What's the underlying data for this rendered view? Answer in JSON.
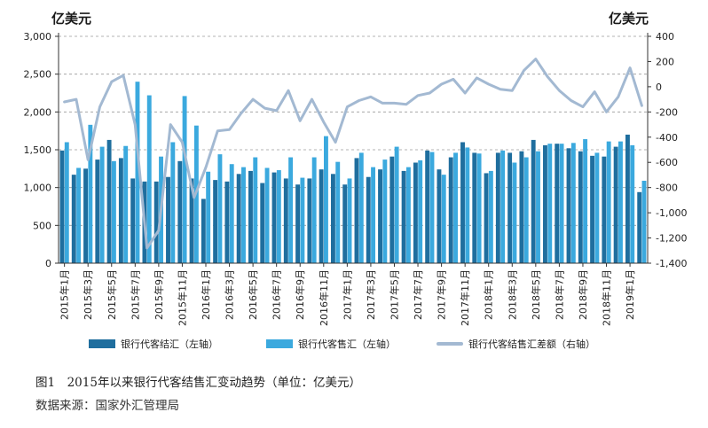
{
  "left_unit": "亿美元",
  "right_unit": "亿美元",
  "caption": "图1　2015年以来银行代客结售汇变动趋势（单位：亿美元）",
  "source": "数据来源：国家外汇管理局",
  "colors": {
    "settlement": "#1f6e9e",
    "sales": "#3ba9de",
    "balance": "#a3b9d2",
    "grid": "#9a9a9a",
    "axis": "#333333"
  },
  "chart_data": {
    "type": "bar+line",
    "categories": [
      "2015年1月",
      "2015年2月",
      "2015年3月",
      "2015年4月",
      "2015年5月",
      "2015年6月",
      "2015年7月",
      "2015年8月",
      "2015年9月",
      "2015年10月",
      "2015年11月",
      "2015年12月",
      "2016年1月",
      "2016年2月",
      "2016年3月",
      "2016年4月",
      "2016年5月",
      "2016年6月",
      "2016年7月",
      "2016年8月",
      "2016年9月",
      "2016年10月",
      "2016年11月",
      "2016年12月",
      "2017年1月",
      "2017年2月",
      "2017年3月",
      "2017年4月",
      "2017年5月",
      "2017年6月",
      "2017年7月",
      "2017年8月",
      "2017年9月",
      "2017年10月",
      "2017年11月",
      "2017年12月",
      "2018年1月",
      "2018年2月",
      "2018年3月",
      "2018年4月",
      "2018年5月",
      "2018年6月",
      "2018年7月",
      "2018年8月",
      "2018年9月",
      "2018年10月",
      "2018年11月",
      "2018年12月",
      "2019年1月",
      "2019年2月"
    ],
    "tick_labels": [
      "2015年1月",
      "2015年3月",
      "2015年5月",
      "2015年7月",
      "2015年9月",
      "2015年11月",
      "2016年1月",
      "2016年3月",
      "2016年5月",
      "2016年7月",
      "2016年9月",
      "2016年11月",
      "2017年1月",
      "2017年3月",
      "2017年5月",
      "2017年7月",
      "2017年9月",
      "2017年11月",
      "2018年1月",
      "2018年3月",
      "2018年5月",
      "2018年7月",
      "2018年9月",
      "2018年11月",
      "2019年1月"
    ],
    "series": [
      {
        "name": "银行代客结汇（左轴）",
        "axis": "left",
        "kind": "bar",
        "values": [
          1490,
          1170,
          1250,
          1370,
          1630,
          1390,
          1120,
          1080,
          1080,
          1140,
          1350,
          1120,
          850,
          1100,
          1080,
          1180,
          1220,
          1060,
          1200,
          1120,
          1040,
          1120,
          1240,
          1180,
          1040,
          1390,
          1140,
          1240,
          1410,
          1220,
          1330,
          1490,
          1240,
          1400,
          1600,
          1460,
          1190,
          1460,
          1460,
          1480,
          1630,
          1560,
          1580,
          1520,
          1480,
          1420,
          1410,
          1540,
          1700,
          940
        ]
      },
      {
        "name": "银行代客售汇（左轴）",
        "axis": "left",
        "kind": "bar",
        "values": [
          1600,
          1260,
          1830,
          1540,
          1350,
          1550,
          2400,
          2220,
          1410,
          1600,
          2210,
          1820,
          1210,
          1440,
          1310,
          1270,
          1400,
          1260,
          1230,
          1400,
          1130,
          1400,
          1680,
          1340,
          1120,
          1460,
          1270,
          1370,
          1540,
          1270,
          1360,
          1470,
          1170,
          1460,
          1530,
          1450,
          1220,
          1490,
          1330,
          1400,
          1480,
          1580,
          1580,
          1590,
          1640,
          1460,
          1610,
          1610,
          1560,
          1090
        ]
      },
      {
        "name": "银行代客结售汇差额（右轴）",
        "axis": "right",
        "kind": "line",
        "values": [
          -120,
          -100,
          -580,
          -160,
          40,
          90,
          -300,
          -1280,
          -1140,
          -300,
          -440,
          -880,
          -640,
          -350,
          -340,
          -210,
          -100,
          -170,
          -190,
          -30,
          -270,
          -100,
          -280,
          -440,
          -160,
          -110,
          -80,
          -130,
          -130,
          -140,
          -70,
          -50,
          20,
          60,
          -50,
          70,
          20,
          -20,
          -30,
          130,
          220,
          80,
          -30,
          -110,
          -160,
          -40,
          -200,
          -80,
          150,
          -150
        ]
      }
    ],
    "left_axis": {
      "min": 0,
      "max": 3000,
      "ticks": [
        "0",
        "500",
        "1,000",
        "1,500",
        "2,000",
        "2,500",
        "3,000"
      ]
    },
    "right_axis": {
      "min": -1400,
      "max": 400,
      "ticks": [
        "-1,400",
        "-1,200",
        "-1,000",
        "-800",
        "-600",
        "-400",
        "-200",
        "0",
        "200",
        "400"
      ]
    },
    "grid": "horizontal-dashed",
    "legend": "bottom"
  }
}
